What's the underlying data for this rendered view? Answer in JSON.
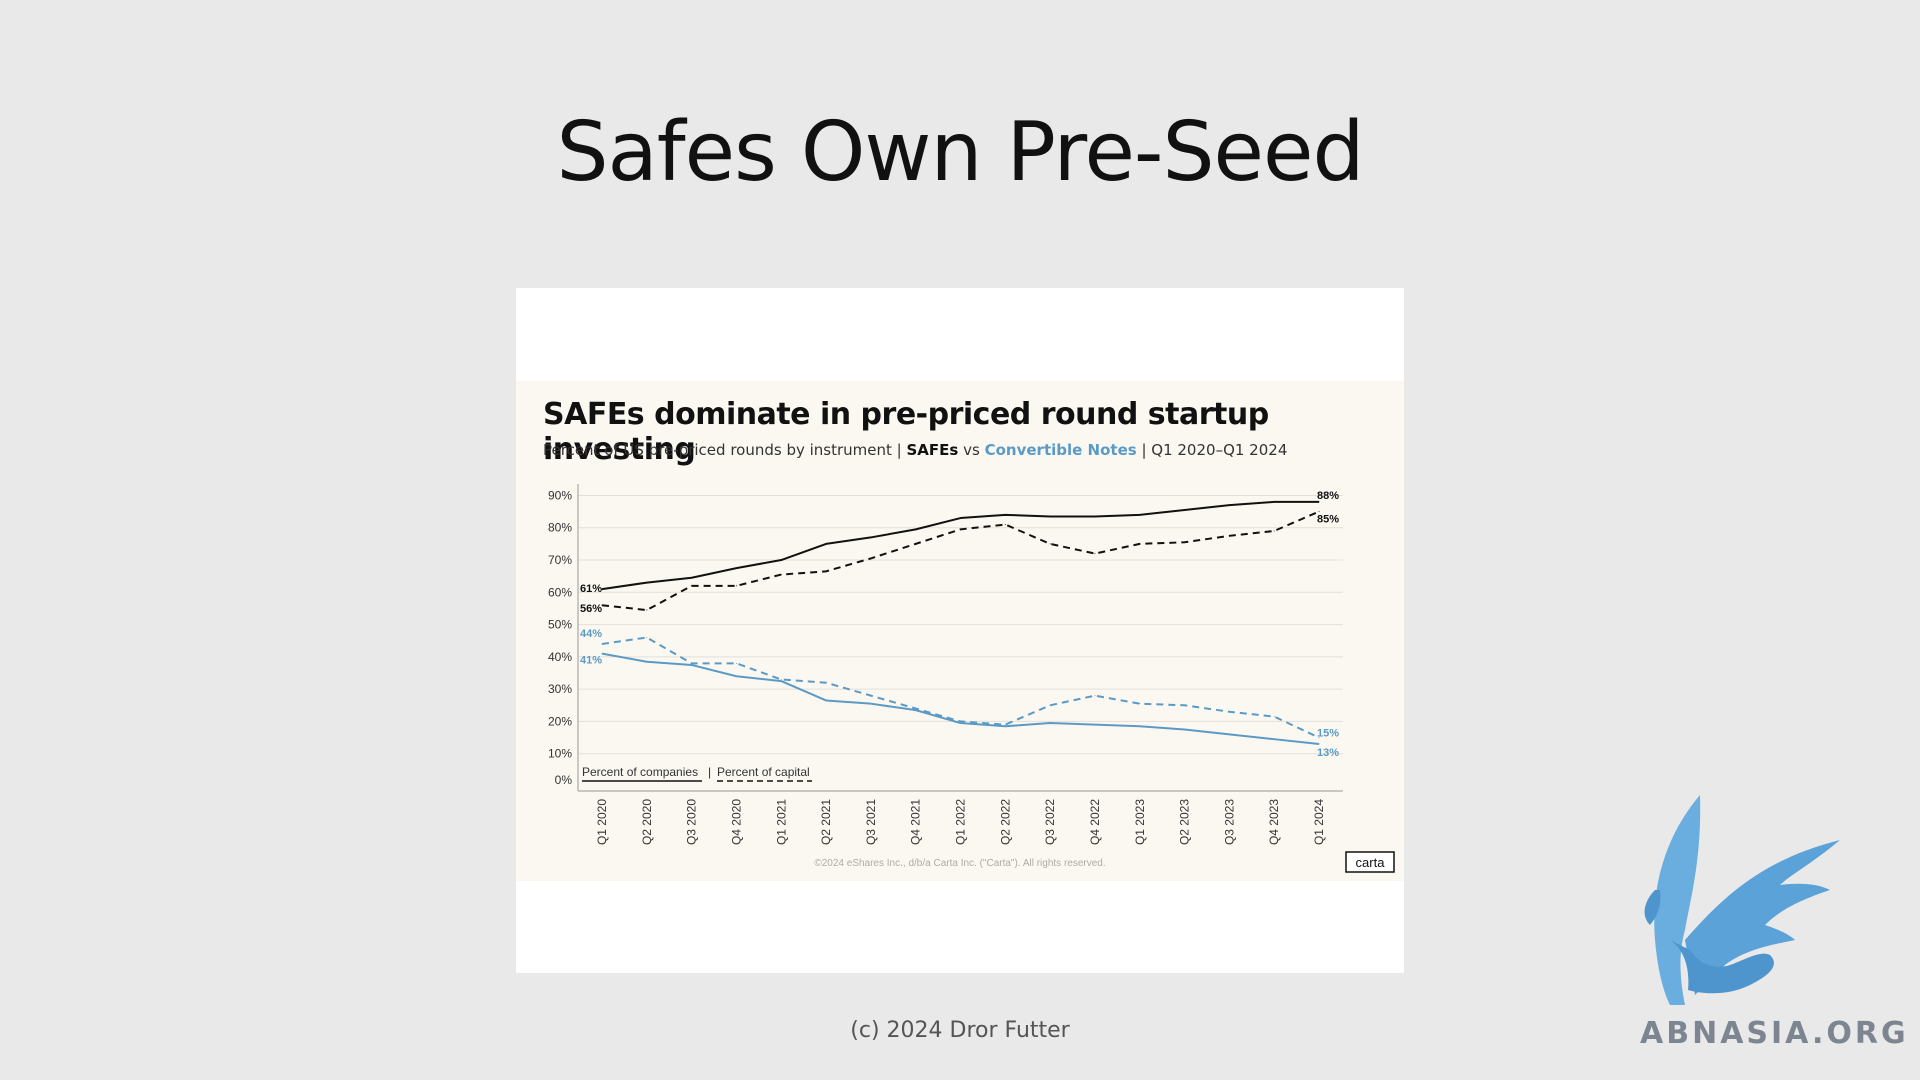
{
  "slide": {
    "title": "Safes Own Pre-Seed",
    "footer": "(c) 2024 Dror Futter"
  },
  "watermark": {
    "text": "ABNASIA.ORG",
    "icon": "griffin-logo"
  },
  "chart_data": {
    "type": "line",
    "title": "SAFEs dominate in pre-priced round startup investing",
    "subtitle": {
      "prefix": "Percent of US pre-priced rounds by instrument |",
      "safes": "SAFEs",
      "vs": "vs",
      "notes": "Convertible Notes",
      "suffix": "| Q1 2020–Q1 2024"
    },
    "categories": [
      "Q1 2020",
      "Q2 2020",
      "Q3 2020",
      "Q4 2020",
      "Q1 2021",
      "Q2 2021",
      "Q3 2021",
      "Q4 2021",
      "Q1 2022",
      "Q2 2022",
      "Q3 2022",
      "Q4 2022",
      "Q1 2023",
      "Q2 2023",
      "Q3 2023",
      "Q4 2023",
      "Q1 2024"
    ],
    "y_ticks": [
      "90%",
      "80%",
      "70%",
      "60%",
      "50%",
      "40%",
      "30%",
      "20%",
      "10%",
      "0%"
    ],
    "ylim": [
      0,
      92
    ],
    "grid": true,
    "series": [
      {
        "name": "SAFEs",
        "measure": "Percent of companies",
        "color": "#111111",
        "dashed": false,
        "values": [
          61,
          63,
          64.5,
          67.5,
          70,
          75,
          77,
          79.5,
          83,
          84,
          83.5,
          83.5,
          84,
          85.5,
          87,
          88,
          88
        ],
        "start_label": "61%",
        "end_label": "88%"
      },
      {
        "name": "SAFEs",
        "measure": "Percent of capital",
        "color": "#111111",
        "dashed": true,
        "values": [
          56,
          54.5,
          62,
          62,
          65.5,
          66.5,
          70.5,
          75,
          79.5,
          81,
          75,
          72,
          75,
          75.5,
          77.5,
          79,
          85
        ],
        "start_label": "56%",
        "end_label": "85%"
      },
      {
        "name": "Convertible Notes",
        "measure": "Percent of companies",
        "color": "#5b9ac5",
        "dashed": false,
        "values": [
          41,
          38.5,
          37.5,
          34,
          32.5,
          26.5,
          25.5,
          23.5,
          19.5,
          18.5,
          19.5,
          19,
          18.5,
          17.5,
          16,
          14.5,
          13
        ],
        "start_label": "41%",
        "end_label": "13%"
      },
      {
        "name": "Convertible Notes",
        "measure": "Percent of capital",
        "color": "#5b9ac5",
        "dashed": true,
        "values": [
          44,
          46,
          38,
          38,
          33,
          32,
          28,
          24,
          20,
          19,
          25,
          28,
          25.5,
          25,
          23,
          21.5,
          15
        ],
        "start_label": "44%",
        "end_label": "15%"
      }
    ],
    "legend": {
      "placement": "bottom-left",
      "solid": "Percent of companies",
      "separator": "|",
      "dashed": "Percent of capital"
    },
    "copyright": "©2024 eShares Inc., d/b/a Carta Inc. (\"Carta\"). All rights reserved.",
    "brand": "carta"
  }
}
